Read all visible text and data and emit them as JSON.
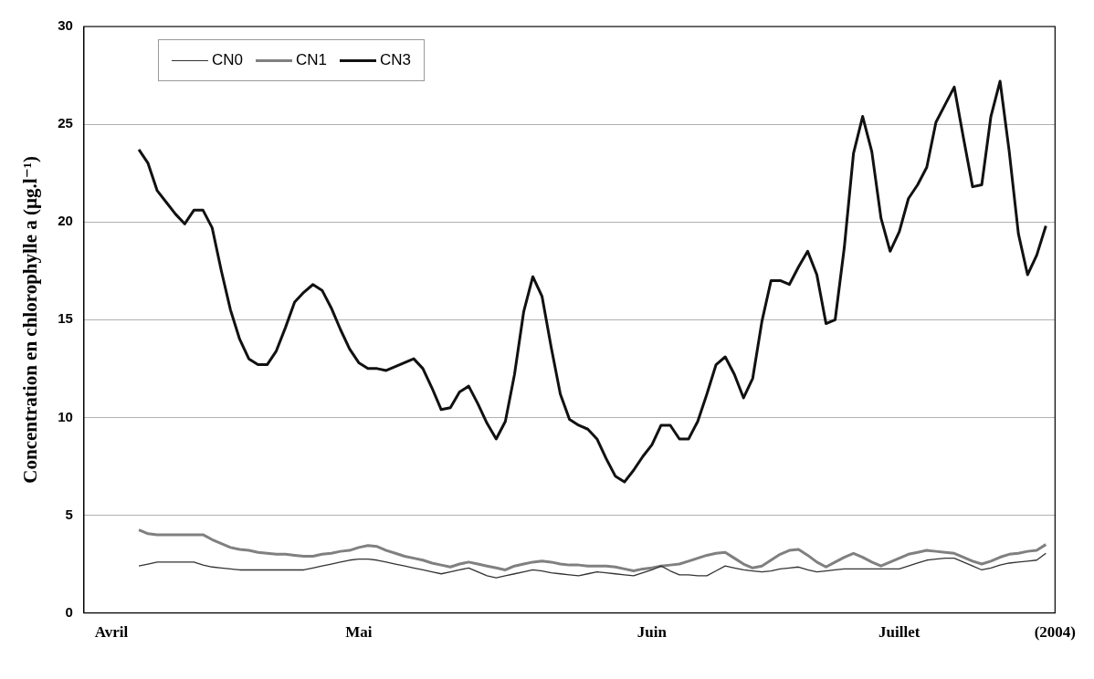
{
  "chart_data": {
    "type": "line",
    "ylabel": "Concentration en chlorophylle a (µg.l⁻¹)",
    "categories": [
      null,
      null,
      null,
      "Avril",
      null,
      null,
      null,
      null,
      null,
      null,
      null,
      null,
      null,
      null,
      null,
      null,
      null,
      null,
      null,
      null,
      null,
      null,
      null,
      null,
      null,
      null,
      null,
      null,
      null,
      null,
      "Mai",
      null,
      null,
      null,
      null,
      null,
      null,
      null,
      null,
      null,
      null,
      null,
      null,
      null,
      null,
      null,
      null,
      null,
      null,
      null,
      null,
      null,
      null,
      null,
      null,
      null,
      null,
      null,
      null,
      null,
      null,
      null,
      "Juin",
      null,
      null,
      null,
      null,
      null,
      null,
      null,
      null,
      null,
      null,
      null,
      null,
      null,
      null,
      null,
      null,
      null,
      null,
      null,
      null,
      null,
      null,
      null,
      null,
      null,
      null,
      "Juillet",
      null,
      null,
      null,
      null,
      null,
      null,
      null,
      null,
      null,
      null,
      null,
      null,
      null,
      null,
      null,
      null,
      "(2004)"
    ],
    "ylim": [
      0,
      30
    ],
    "yticks": [
      0,
      5,
      10,
      15,
      20,
      25,
      30
    ],
    "grid": "y",
    "legend": "top left",
    "marker": "none",
    "line_style": "solid",
    "series": [
      {
        "name": "CN0",
        "color": "#333333",
        "values": [
          null,
          null,
          null,
          null,
          null,
          null,
          2.4,
          2.5,
          2.6,
          2.6,
          2.6,
          2.6,
          2.6,
          2.45,
          2.35,
          2.3,
          2.25,
          2.2,
          2.2,
          2.2,
          2.2,
          2.2,
          2.2,
          2.2,
          2.2,
          2.3,
          2.4,
          2.5,
          2.6,
          2.7,
          2.75,
          2.75,
          2.7,
          2.6,
          2.5,
          2.4,
          2.3,
          2.2,
          2.1,
          2.0,
          2.1,
          2.2,
          2.3,
          2.1,
          1.9,
          1.8,
          1.9,
          2.0,
          2.1,
          2.2,
          2.15,
          2.05,
          2.0,
          1.95,
          1.9,
          2.0,
          2.1,
          2.05,
          2.0,
          1.95,
          1.9,
          2.05,
          2.2,
          2.4,
          2.15,
          1.95,
          1.95,
          1.9,
          1.9,
          2.15,
          2.4,
          2.3,
          2.2,
          2.15,
          2.1,
          2.15,
          2.25,
          2.3,
          2.35,
          2.2,
          2.1,
          2.15,
          2.2,
          2.25,
          2.25,
          2.25,
          2.25,
          2.25,
          2.25,
          2.25,
          2.4,
          2.55,
          2.7,
          2.75,
          2.8,
          2.8,
          2.6,
          2.4,
          2.2,
          2.3,
          2.45,
          2.55,
          2.6,
          2.65,
          2.7,
          3.05,
          null
        ]
      },
      {
        "name": "CN1",
        "color": "#808080",
        "values": [
          null,
          null,
          null,
          null,
          null,
          null,
          4.25,
          4.05,
          4.0,
          4.0,
          4.0,
          4.0,
          4.0,
          4.0,
          3.75,
          3.55,
          3.35,
          3.25,
          3.2,
          3.1,
          3.05,
          3.0,
          3.0,
          2.95,
          2.9,
          2.9,
          3.0,
          3.05,
          3.15,
          3.2,
          3.35,
          3.45,
          3.4,
          3.2,
          3.05,
          2.9,
          2.8,
          2.7,
          2.55,
          2.45,
          2.35,
          2.5,
          2.6,
          2.5,
          2.4,
          2.3,
          2.2,
          2.4,
          2.5,
          2.6,
          2.65,
          2.6,
          2.5,
          2.45,
          2.45,
          2.4,
          2.4,
          2.4,
          2.35,
          2.25,
          2.15,
          2.25,
          2.3,
          2.4,
          2.45,
          2.5,
          2.65,
          2.8,
          2.95,
          3.05,
          3.1,
          2.8,
          2.5,
          2.3,
          2.4,
          2.7,
          3.0,
          3.2,
          3.25,
          2.95,
          2.6,
          2.35,
          2.6,
          2.85,
          3.05,
          2.85,
          2.6,
          2.4,
          2.6,
          2.8,
          3.0,
          3.1,
          3.2,
          3.15,
          3.1,
          3.05,
          2.85,
          2.65,
          2.5,
          2.65,
          2.85,
          3.0,
          3.05,
          3.15,
          3.2,
          3.5,
          null
        ]
      },
      {
        "name": "CN3",
        "color": "#111111",
        "values": [
          null,
          null,
          null,
          null,
          null,
          null,
          23.7,
          23.0,
          21.6,
          21.0,
          20.4,
          19.9,
          20.6,
          20.6,
          19.7,
          17.5,
          15.5,
          14.0,
          13.0,
          12.7,
          12.7,
          13.4,
          14.6,
          15.9,
          16.4,
          16.8,
          16.5,
          15.6,
          14.5,
          13.5,
          12.8,
          12.5,
          12.5,
          12.4,
          12.6,
          12.8,
          13.0,
          12.5,
          11.5,
          10.4,
          10.5,
          11.3,
          11.6,
          10.7,
          9.7,
          8.9,
          9.8,
          12.2,
          15.4,
          17.2,
          16.2,
          13.6,
          11.2,
          9.9,
          9.6,
          9.4,
          8.9,
          7.9,
          7.0,
          6.7,
          7.3,
          8.0,
          8.6,
          9.6,
          9.6,
          8.9,
          8.9,
          9.8,
          11.2,
          12.7,
          13.1,
          12.2,
          11.0,
          12.0,
          14.9,
          17.0,
          17.0,
          16.8,
          17.7,
          18.5,
          17.3,
          14.8,
          15.0,
          18.7,
          23.5,
          25.4,
          23.6,
          20.2,
          18.5,
          19.5,
          21.2,
          21.9,
          22.8,
          25.1,
          26.0,
          26.9,
          24.3,
          21.8,
          21.9,
          25.4,
          27.2,
          23.6,
          19.4,
          17.3,
          18.3,
          19.8,
          null
        ]
      }
    ]
  }
}
